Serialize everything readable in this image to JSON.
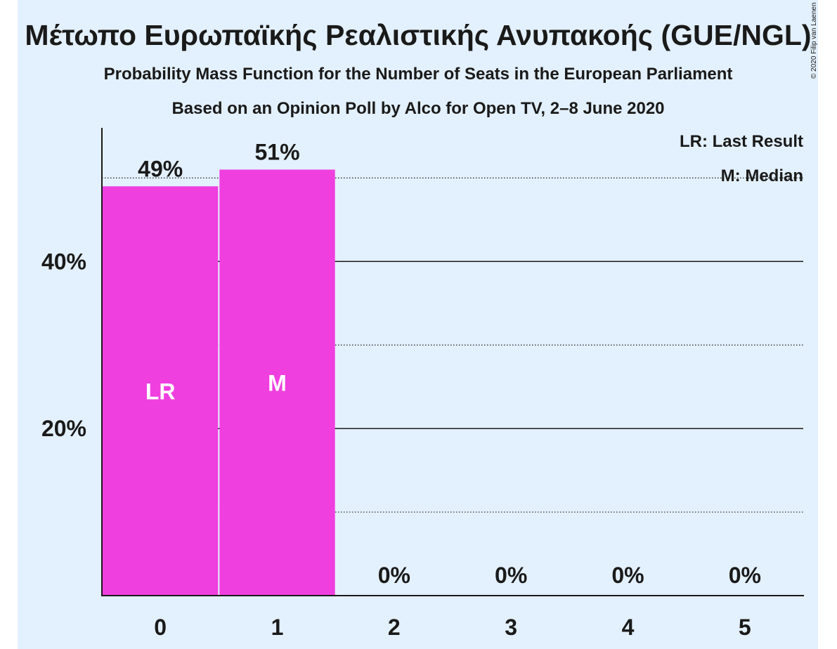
{
  "chart_data": {
    "type": "bar",
    "title": "Μέτωπο Ευρωπαϊκής Ρεαλιστικής Ανυπακοής (GUE/NGL)",
    "subtitle1": "Probability Mass Function for the Number of Seats in the European Parliament",
    "subtitle2": "Based on an Opinion Poll by Alco for Open TV, 2–8 June 2020",
    "copyright": "© 2020 Filip van Laenen",
    "categories": [
      "0",
      "1",
      "2",
      "3",
      "4",
      "5"
    ],
    "values": [
      49,
      51,
      0,
      0,
      0,
      0
    ],
    "value_labels": [
      "49%",
      "51%",
      "0%",
      "0%",
      "0%",
      "0%"
    ],
    "bar_annotations": [
      "LR",
      "M",
      "",
      "",
      "",
      ""
    ],
    "y_ticks": [
      {
        "value": 20,
        "label": "20%"
      },
      {
        "value": 40,
        "label": "40%"
      }
    ],
    "y_dotted_lines": [
      10,
      30,
      50
    ],
    "ylim": [
      0,
      56
    ],
    "legend": [
      "LR: Last Result",
      "M: Median"
    ],
    "legend_position": "top-right",
    "bar_color": "#f03fdf",
    "background_color": "#e3f0fd"
  }
}
